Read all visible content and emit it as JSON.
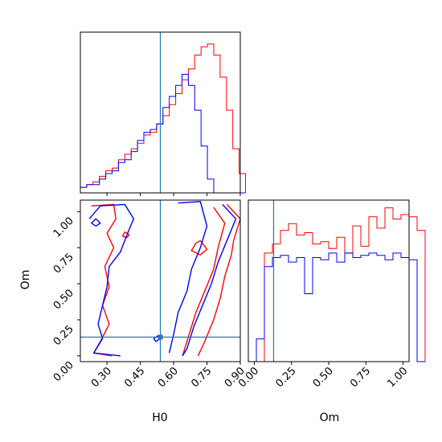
{
  "chart_data": [
    {
      "type": "histogram",
      "panel": "H0 marginal",
      "x_range": [
        0.18,
        0.9
      ],
      "truth_line": 0.54,
      "bins_start": 0.18,
      "bin_width": 0.0286,
      "series": [
        {
          "name": "red",
          "color": "#ff0000",
          "values": [
            2,
            3,
            4,
            6,
            8,
            9,
            12,
            14,
            16,
            18,
            21,
            22,
            25,
            28,
            32,
            36,
            41,
            45,
            50,
            53,
            54,
            50,
            42,
            30,
            16,
            7
          ]
        },
        {
          "name": "blue",
          "color": "#0000ff",
          "values": [
            2,
            3,
            3,
            5,
            7,
            8,
            11,
            12,
            15,
            19,
            22,
            23,
            25,
            31,
            35,
            39,
            43,
            39,
            30,
            17,
            5,
            0,
            0,
            0,
            0,
            0
          ]
        }
      ]
    },
    {
      "type": "contour",
      "panel": "H0 vs Om 2D",
      "xlabel": "H0",
      "ylabel": "Om",
      "xlim": [
        0.18,
        0.9
      ],
      "ylim": [
        -0.04,
        1.08
      ],
      "xticks": [
        "0.30",
        "0.45",
        "0.60",
        "0.75",
        "0.90"
      ],
      "yticks": [
        "0.00",
        "0.25",
        "0.50",
        "0.75",
        "1.00"
      ],
      "truth": {
        "H0": 0.54,
        "Om": 0.13
      },
      "series": [
        {
          "name": "red",
          "color": "#ff0000",
          "contours": [
            [
              [
                0.23,
                1.04
              ],
              [
                0.33,
                1.05
              ],
              [
                0.34,
                0.95
              ],
              [
                0.3,
                0.85
              ],
              [
                0.33,
                0.75
              ],
              [
                0.29,
                0.62
              ],
              [
                0.31,
                0.48
              ],
              [
                0.28,
                0.35
              ],
              [
                0.31,
                0.22
              ],
              [
                0.27,
                0.1
              ],
              [
                0.24,
                0.02
              ],
              [
                0.32,
                0.0
              ]
            ],
            [
              [
                0.84,
                1.05
              ],
              [
                0.9,
                0.95
              ],
              [
                0.87,
                0.8
              ],
              [
                0.86,
                0.7
              ],
              [
                0.83,
                0.55
              ],
              [
                0.81,
                0.4
              ],
              [
                0.78,
                0.25
              ],
              [
                0.74,
                0.1
              ],
              [
                0.71,
                0.0
              ]
            ],
            [
              [
                0.78,
                1.03
              ],
              [
                0.83,
                0.92
              ],
              [
                0.8,
                0.75
              ],
              [
                0.78,
                0.6
              ],
              [
                0.74,
                0.45
              ],
              [
                0.7,
                0.3
              ],
              [
                0.67,
                0.15
              ],
              [
                0.64,
                0.0
              ]
            ],
            [
              [
                0.72,
                0.8
              ],
              [
                0.75,
                0.74
              ],
              [
                0.72,
                0.7
              ],
              [
                0.68,
                0.73
              ],
              [
                0.7,
                0.78
              ],
              [
                0.72,
                0.8
              ]
            ],
            [
              [
                0.38,
                0.86
              ],
              [
                0.4,
                0.84
              ],
              [
                0.39,
                0.82
              ],
              [
                0.37,
                0.83
              ],
              [
                0.38,
                0.86
              ]
            ]
          ]
        },
        {
          "name": "blue",
          "color": "#0000ff",
          "contours": [
            [
              [
                0.22,
                0.95
              ],
              [
                0.27,
                1.04
              ],
              [
                0.38,
                1.05
              ],
              [
                0.42,
                0.95
              ],
              [
                0.39,
                0.84
              ],
              [
                0.36,
                0.72
              ],
              [
                0.31,
                0.62
              ],
              [
                0.3,
                0.48
              ],
              [
                0.28,
                0.35
              ],
              [
                0.26,
                0.22
              ],
              [
                0.28,
                0.12
              ],
              [
                0.24,
                0.02
              ],
              [
                0.36,
                0.0
              ]
            ],
            [
              [
                0.62,
                1.06
              ],
              [
                0.72,
                1.07
              ],
              [
                0.75,
                0.9
              ],
              [
                0.72,
                0.75
              ],
              [
                0.68,
                0.6
              ],
              [
                0.66,
                0.45
              ],
              [
                0.62,
                0.3
              ],
              [
                0.6,
                0.15
              ],
              [
                0.58,
                0.02
              ]
            ],
            [
              [
                0.82,
                1.05
              ],
              [
                0.88,
                0.95
              ],
              [
                0.84,
                0.8
              ],
              [
                0.8,
                0.65
              ],
              [
                0.77,
                0.5
              ],
              [
                0.73,
                0.35
              ],
              [
                0.69,
                0.2
              ],
              [
                0.66,
                0.05
              ],
              [
                0.64,
                0.0
              ]
            ],
            [
              [
                0.25,
                0.95
              ],
              [
                0.27,
                0.92
              ],
              [
                0.25,
                0.9
              ],
              [
                0.23,
                0.92
              ],
              [
                0.25,
                0.95
              ]
            ],
            [
              [
                0.51,
                0.12
              ],
              [
                0.53,
                0.14
              ],
              [
                0.54,
                0.12
              ],
              [
                0.52,
                0.1
              ],
              [
                0.51,
                0.12
              ]
            ]
          ]
        }
      ]
    },
    {
      "type": "histogram",
      "panel": "Om marginal",
      "xlabel": "Om",
      "x_range": [
        -0.04,
        1.04
      ],
      "xticks": [
        "0.00",
        "0.25",
        "0.50",
        "0.75",
        "1.00"
      ],
      "truth_line": 0.13,
      "bins_start": -0.04,
      "bin_width": 0.054,
      "series": [
        {
          "name": "red",
          "color": "#ff0000",
          "values": [
            0,
            0,
            48,
            52,
            58,
            61,
            56,
            57,
            52,
            53,
            50,
            55,
            48,
            60,
            51,
            64,
            59,
            68,
            63,
            65,
            64,
            58
          ]
        },
        {
          "name": "blue",
          "color": "#0000ff",
          "values": [
            0,
            10,
            42,
            46,
            47,
            44,
            46,
            30,
            46,
            45,
            48,
            44,
            48,
            46,
            47,
            48,
            47,
            45,
            48,
            46,
            45,
            0
          ]
        }
      ]
    }
  ]
}
